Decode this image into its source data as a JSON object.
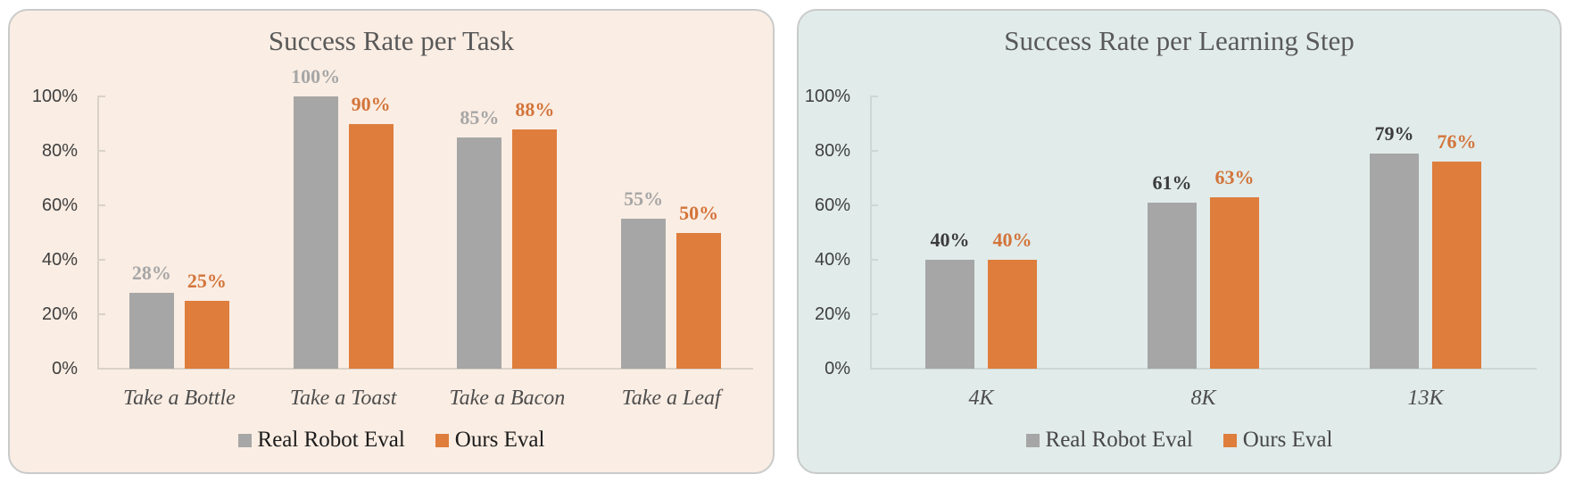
{
  "page": {
    "background": "#ffffff"
  },
  "chart_data": [
    {
      "type": "bar",
      "title": "Success Rate per Task",
      "panel_bg": "#faede3",
      "legend_color": "#1c1c1c",
      "legend_position": "bottom",
      "grid": false,
      "categories": [
        "Take a Bottle",
        "Take a Toast",
        "Take a Bacon",
        "Take a Leaf"
      ],
      "series": [
        {
          "name": "Real Robot Eval",
          "color": "#a6a6a6",
          "label_color": "#a6a6a6",
          "values": [
            28,
            100,
            85,
            55
          ]
        },
        {
          "name": "Ours Eval",
          "color": "#de7d3c",
          "label_color": "#d3743a",
          "values": [
            25,
            90,
            88,
            50
          ]
        }
      ],
      "value_suffix": "%",
      "ylim": [
        0,
        100
      ],
      "y_ticks": [
        "0%",
        "20%",
        "40%",
        "60%",
        "80%",
        "100%"
      ],
      "xlabel": "",
      "ylabel": ""
    },
    {
      "type": "bar",
      "title": "Success Rate per Learning Step",
      "panel_bg": "#e1ebea",
      "legend_color": "#474747",
      "legend_position": "bottom",
      "grid": false,
      "categories": [
        "4K",
        "8K",
        "13K"
      ],
      "series": [
        {
          "name": "Real Robot Eval",
          "color": "#a6a6a6",
          "label_color": "#3b3b3b",
          "values": [
            40,
            61,
            79
          ]
        },
        {
          "name": "Ours Eval",
          "color": "#de7d3c",
          "label_color": "#d3743a",
          "values": [
            40,
            63,
            76
          ]
        }
      ],
      "value_suffix": "%",
      "ylim": [
        0,
        100
      ],
      "y_ticks": [
        "0%",
        "20%",
        "40%",
        "60%",
        "80%",
        "100%"
      ],
      "xlabel": "",
      "ylabel": ""
    }
  ]
}
